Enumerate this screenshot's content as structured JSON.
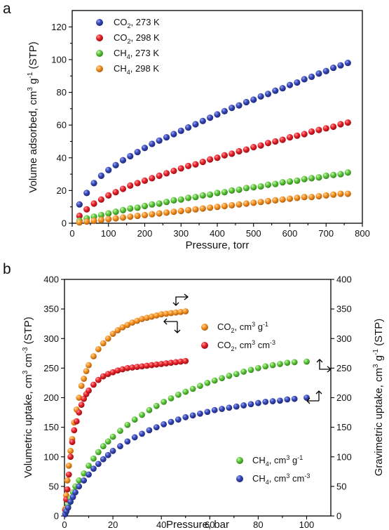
{
  "colors": {
    "blue": "#2f3ea8",
    "red": "#e8202a",
    "green": "#5cc63a",
    "orange": "#f5901f"
  },
  "chart_data": [
    {
      "panel": "a",
      "type": "scatter",
      "xlabel": "Pressure, torr",
      "ylabel": "Volume adsorbed, cm3 g-1 (STP)",
      "ylabel_parts": {
        "pre": "Volume adsorbed, cm",
        "sup1": "3",
        "mid": " g",
        "sup2": "-1",
        "post": " (STP)"
      },
      "xlim": [
        0,
        800
      ],
      "ylim": [
        0,
        130
      ],
      "xticks": [
        0,
        100,
        200,
        300,
        400,
        500,
        600,
        700,
        800
      ],
      "yticks": [
        0,
        20,
        40,
        60,
        80,
        100,
        120
      ],
      "legend_position": "top-left",
      "series": [
        {
          "name": "CO2, 273 K",
          "label_parts": {
            "a": "CO",
            "sub": "2",
            "b": ", 273 K"
          },
          "color": "blue",
          "x": [
            20,
            40,
            60,
            80,
            100,
            120,
            140,
            160,
            180,
            200,
            220,
            240,
            260,
            280,
            300,
            320,
            340,
            360,
            380,
            400,
            420,
            440,
            460,
            480,
            500,
            520,
            540,
            560,
            580,
            600,
            620,
            640,
            660,
            680,
            700,
            720,
            740,
            760
          ],
          "y": [
            11.5,
            18.5,
            24.5,
            29,
            32.5,
            35.5,
            38.5,
            41,
            43.5,
            46,
            48.5,
            50.5,
            52.5,
            54.5,
            56.5,
            58.5,
            60.5,
            62.5,
            64.5,
            66.5,
            68.5,
            70.5,
            72,
            74,
            75.5,
            77.5,
            79,
            81,
            82.5,
            84.5,
            86,
            88,
            89.5,
            91.5,
            93,
            95,
            96.5,
            98
          ]
        },
        {
          "name": "CO2, 298 K",
          "label_parts": {
            "a": "CO",
            "sub": "2",
            "b": ", 298 K"
          },
          "color": "red",
          "x": [
            20,
            40,
            60,
            80,
            100,
            120,
            140,
            160,
            180,
            200,
            220,
            240,
            260,
            280,
            300,
            320,
            340,
            360,
            380,
            400,
            420,
            440,
            460,
            480,
            500,
            520,
            540,
            560,
            580,
            600,
            620,
            640,
            660,
            680,
            700,
            720,
            740,
            760
          ],
          "y": [
            4.5,
            8.5,
            12,
            14.5,
            17,
            19,
            21,
            23,
            24.5,
            26,
            27.5,
            29,
            30.5,
            32,
            33.5,
            35,
            36,
            37.5,
            39,
            40,
            41.5,
            42.5,
            44,
            45,
            46.5,
            47.5,
            49,
            50,
            51,
            52.5,
            53.5,
            54.5,
            56,
            57,
            58,
            59,
            60.5,
            61.5
          ]
        },
        {
          "name": "CH4, 273 K",
          "label_parts": {
            "a": "CH",
            "sub": "4",
            "b": ", 273 K"
          },
          "color": "green",
          "x": [
            20,
            40,
            60,
            80,
            100,
            120,
            140,
            160,
            180,
            200,
            220,
            240,
            260,
            280,
            300,
            320,
            340,
            360,
            380,
            400,
            420,
            440,
            460,
            480,
            500,
            520,
            540,
            560,
            580,
            600,
            620,
            640,
            660,
            680,
            700,
            720,
            740,
            760
          ],
          "y": [
            1.5,
            3,
            4,
            5,
            6,
            7,
            8,
            9,
            9.5,
            10.5,
            11.5,
            12,
            13,
            14,
            14.5,
            15.5,
            16,
            17,
            17.5,
            18.5,
            19,
            20,
            20.5,
            21.5,
            22,
            22.5,
            23.5,
            24,
            25,
            25.5,
            26,
            27,
            27.5,
            28,
            29,
            29.5,
            30,
            31
          ]
        },
        {
          "name": "CH4, 298 K",
          "label_parts": {
            "a": "CH",
            "sub": "4",
            "b": ", 298 K"
          },
          "color": "orange",
          "x": [
            20,
            40,
            60,
            80,
            100,
            120,
            140,
            160,
            180,
            200,
            220,
            240,
            260,
            280,
            300,
            320,
            340,
            360,
            380,
            400,
            420,
            440,
            460,
            480,
            500,
            520,
            540,
            560,
            580,
            600,
            620,
            640,
            660,
            680,
            700,
            720,
            740,
            760
          ],
          "y": [
            0.5,
            1,
            1.5,
            2,
            2.5,
            3,
            3.5,
            4,
            4.5,
            5,
            5.5,
            6,
            6.5,
            7,
            7.5,
            8,
            8.5,
            9,
            9.5,
            10,
            10.5,
            11,
            11.5,
            12,
            12.5,
            13,
            13.5,
            14,
            14.5,
            15,
            15.5,
            16,
            16,
            16.5,
            17,
            17.5,
            18,
            18
          ]
        }
      ]
    },
    {
      "panel": "b",
      "type": "scatter",
      "xlabel": "Pressure, bar",
      "ylabel": "Volumetric uptake, cm3 cm-3 (STP)",
      "ylabel_parts": {
        "pre": "Volumetric uptake, cm",
        "sup1": "3",
        "mid": " cm",
        "sup2": "-3",
        "post": " (STP)"
      },
      "ylabel_right": "Gravimetric uptake, cm3 g-1 (STP)",
      "ylabel_right_parts": {
        "pre": "Gravimetric uptake, cm",
        "sup1": "3",
        "mid": " g",
        "sup2": "-1",
        "post": " (STP)"
      },
      "xlim": [
        0,
        110
      ],
      "ylim": [
        0,
        400
      ],
      "ylim_right": [
        0,
        400
      ],
      "xticks": [
        0,
        20,
        40,
        60,
        80,
        100
      ],
      "yticks": [
        0,
        50,
        100,
        150,
        200,
        250,
        300,
        350,
        400
      ],
      "yticks_right": [
        0,
        50,
        100,
        150,
        200,
        250,
        300,
        350,
        400
      ],
      "series": [
        {
          "name": "CO2, cm3 g-1",
          "label_parts": {
            "a": "CO",
            "sub": "2",
            "b": ", cm",
            "sup1": "3",
            "c": " g",
            "sup2": "-1"
          },
          "color": "orange",
          "legend": "upper",
          "x": [
            0.3,
            0.7,
            1.2,
            1.8,
            2.5,
            3.2,
            4,
            5,
            6,
            7,
            8,
            9,
            10,
            12,
            14,
            16,
            18,
            20,
            22,
            24,
            26,
            28,
            30,
            32,
            34,
            36,
            38,
            40,
            42,
            44,
            46,
            48,
            50
          ],
          "y": [
            12,
            35,
            60,
            85,
            110,
            130,
            158,
            180,
            200,
            220,
            232,
            245,
            255,
            270,
            282,
            292,
            300,
            308,
            314,
            319,
            323,
            327,
            330,
            333,
            335,
            337,
            339,
            341,
            342,
            343,
            344,
            345,
            346
          ]
        },
        {
          "name": "CO2, cm3 cm-3",
          "label_parts": {
            "a": "CO",
            "sub": "2",
            "b": ", cm",
            "sup1": "3",
            "c": " cm",
            "sup2": "-3"
          },
          "color": "red",
          "legend": "upper",
          "x": [
            0.3,
            0.7,
            1.2,
            1.8,
            2.5,
            3.2,
            4,
            5,
            6,
            7,
            8,
            9,
            10,
            12,
            14,
            16,
            18,
            20,
            22,
            24,
            26,
            28,
            30,
            32,
            34,
            36,
            38,
            40,
            42,
            44,
            46,
            48,
            50
          ],
          "y": [
            10,
            28,
            45,
            70,
            100,
            125,
            145,
            160,
            175,
            188,
            198,
            206,
            212,
            222,
            230,
            236,
            240,
            243,
            246,
            248,
            250,
            251,
            252,
            253,
            254,
            255,
            256,
            257,
            258,
            259,
            260,
            261,
            262
          ]
        },
        {
          "name": "CH4, cm3 g-1",
          "label_parts": {
            "a": "CH",
            "sub": "4",
            "b": ", cm",
            "sup1": "3",
            "c": " g",
            "sup2": "-1"
          },
          "color": "green",
          "legend": "lower",
          "x": [
            0.3,
            0.8,
            1.5,
            2.5,
            3.5,
            4.5,
            6,
            8,
            10,
            12,
            14,
            16,
            18,
            20,
            23,
            26,
            29,
            32,
            35,
            38,
            41,
            44,
            47,
            50,
            53,
            56,
            59,
            62,
            65,
            68,
            71,
            74,
            77,
            80,
            83,
            86,
            89,
            92,
            95,
            100
          ],
          "y": [
            4,
            10,
            18,
            30,
            40,
            50,
            60,
            72,
            85,
            97,
            108,
            118,
            126,
            134,
            144,
            154,
            163,
            171,
            179,
            186,
            193,
            199,
            205,
            210,
            215,
            220,
            225,
            229,
            233,
            237,
            240,
            244,
            247,
            250,
            253,
            255,
            257,
            259,
            260,
            261
          ]
        },
        {
          "name": "CH4, cm3 cm-3",
          "label_parts": {
            "a": "CH",
            "sub": "4",
            "b": ", cm",
            "sup1": "3",
            "c": " cm",
            "sup2": "-3"
          },
          "color": "blue",
          "legend": "lower",
          "x": [
            0.3,
            0.8,
            1.5,
            2.5,
            3.5,
            4.5,
            6,
            8,
            10,
            12,
            14,
            16,
            18,
            20,
            23,
            26,
            29,
            32,
            35,
            38,
            41,
            44,
            47,
            50,
            53,
            56,
            59,
            62,
            65,
            68,
            71,
            74,
            77,
            80,
            83,
            86,
            89,
            92,
            95,
            100
          ],
          "y": [
            3,
            8,
            14,
            24,
            32,
            40,
            50,
            60,
            70,
            80,
            88,
            96,
            103,
            110,
            118,
            126,
            133,
            139,
            145,
            150,
            155,
            159,
            163,
            167,
            170,
            173,
            176,
            179,
            181,
            183,
            185,
            187,
            189,
            191,
            193,
            194,
            195,
            197,
            198,
            200
          ]
        }
      ]
    }
  ]
}
